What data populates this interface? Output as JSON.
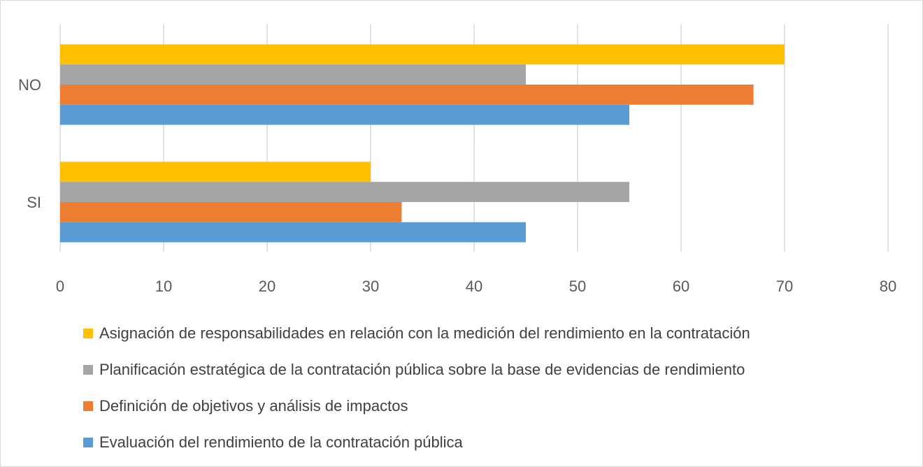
{
  "chart_data": {
    "type": "bar",
    "orientation": "horizontal",
    "categories": [
      "NO",
      "SI"
    ],
    "series": [
      {
        "name": "Evaluación del rendimiento de la contratación pública",
        "color": "#5B9BD5",
        "values": [
          55,
          45
        ]
      },
      {
        "name": "Definición de objetivos y análisis de impactos",
        "color": "#ED7D31",
        "values": [
          67,
          33
        ]
      },
      {
        "name": "Planificación estratégica de la contratación pública sobre la base de evidencias de rendimiento",
        "color": "#A5A5A5",
        "values": [
          45,
          55
        ]
      },
      {
        "name": "Asignación de responsabilidades en relación con la medición del rendimiento en la contratación",
        "color": "#FFC000",
        "values": [
          70,
          30
        ]
      }
    ],
    "xlim": [
      0,
      80
    ],
    "xticks": [
      "0",
      "10",
      "20",
      "30",
      "40",
      "50",
      "60",
      "70",
      "80"
    ],
    "grid": "vertical",
    "legend_position": "bottom",
    "title": "",
    "xlabel": "",
    "ylabel": ""
  }
}
